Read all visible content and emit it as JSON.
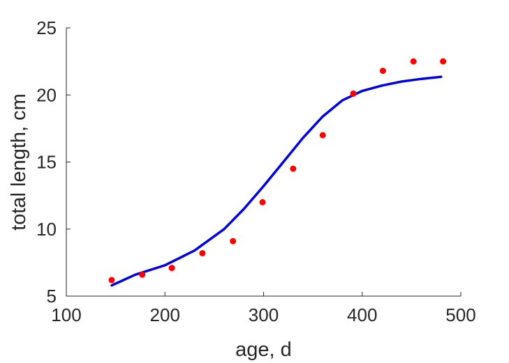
{
  "chart_data": {
    "type": "scatter",
    "title": "",
    "xlabel": "age, d",
    "ylabel": "total length, cm",
    "xlim": [
      100,
      500
    ],
    "ylim": [
      5,
      25
    ],
    "xticks": [
      100,
      200,
      300,
      400,
      500
    ],
    "yticks": [
      5,
      10,
      15,
      20,
      25
    ],
    "grid": false,
    "series": [
      {
        "kind": "points",
        "color": "#ff0000",
        "x": [
          146,
          177,
          207,
          238,
          269,
          299,
          330,
          360,
          391,
          421,
          452,
          482
        ],
        "y": [
          6.2,
          6.6,
          7.1,
          8.2,
          9.1,
          12.0,
          14.5,
          17.0,
          20.1,
          21.8,
          22.5,
          22.5
        ]
      },
      {
        "kind": "line",
        "color": "#0000e6",
        "x": [
          146,
          170,
          200,
          230,
          260,
          280,
          300,
          320,
          340,
          360,
          380,
          400,
          420,
          440,
          460,
          480
        ],
        "y": [
          5.8,
          6.6,
          7.3,
          8.4,
          10.0,
          11.5,
          13.2,
          15.0,
          16.8,
          18.4,
          19.6,
          20.3,
          20.7,
          21.0,
          21.2,
          21.35
        ]
      }
    ]
  }
}
